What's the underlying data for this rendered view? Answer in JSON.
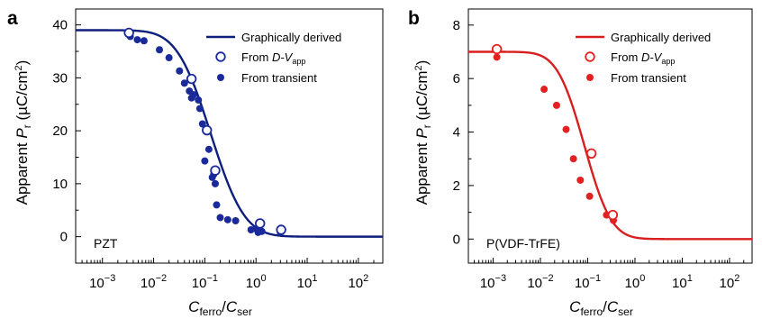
{
  "chart_data": [
    {
      "panel": "a",
      "type": "scatter",
      "color": "#1a2a9a",
      "curve_color": "#0d1f7a",
      "annotation": "PZT",
      "xscale": "log",
      "xlim": [
        0.0003,
        300
      ],
      "ylim": [
        -5,
        43
      ],
      "xticks": [
        0.001,
        0.01,
        0.1,
        1,
        10,
        100
      ],
      "xtick_mantissa": "10",
      "xtick_exponents": [
        "−3",
        "−2",
        "−1",
        "0",
        "1",
        "2"
      ],
      "yticks": [
        0,
        10,
        20,
        30,
        40
      ],
      "ytick_labels": [
        "0",
        "10",
        "20",
        "30",
        "40"
      ],
      "xlabel": {
        "C": "C",
        "ferro": "ferro",
        "slash": "/",
        "C2": "C",
        "ser": "ser"
      },
      "ylabel": {
        "prefix": "Apparent ",
        "P": "P",
        "r": "r",
        "units": " (µC/cm",
        "sup": "2",
        "close": ")"
      },
      "legend": {
        "curve": "Graphically derived",
        "open_from": "From ",
        "open_dv": "D-V",
        "open_sub": "app",
        "filled": "From transient"
      },
      "model": {
        "p_max": 39.0,
        "x0": 0.13,
        "width": 0.52
      },
      "series": [
        {
          "name": "Graphically derived",
          "kind": "curve"
        },
        {
          "name": "From D-Vapp",
          "kind": "open",
          "x": [
            0.0033,
            0.055,
            0.11,
            0.16,
            1.2,
            3.1
          ],
          "y": [
            38.5,
            29.8,
            20.1,
            12.5,
            2.5,
            1.3
          ]
        },
        {
          "name": "From transient",
          "kind": "filled",
          "x": [
            0.0035,
            0.0048,
            0.0065,
            0.013,
            0.02,
            0.032,
            0.04,
            0.05,
            0.055,
            0.06,
            0.075,
            0.08,
            0.09,
            0.1,
            0.12,
            0.14,
            0.15,
            0.16,
            0.17,
            0.2,
            0.28,
            0.4,
            0.8,
            1.0,
            1.1,
            1.3,
            3.0
          ],
          "y": [
            37.8,
            37.2,
            37.0,
            35.3,
            33.8,
            31.3,
            29.0,
            27.5,
            26.2,
            26.8,
            25.8,
            24.2,
            21.3,
            14.3,
            16.5,
            11.2,
            11.8,
            10.0,
            6.0,
            3.6,
            3.2,
            3.0,
            1.3,
            1.5,
            0.8,
            1.0,
            0.8
          ]
        }
      ]
    },
    {
      "panel": "b",
      "type": "scatter",
      "color": "#e52020",
      "curve_color": "#d81e1e",
      "annotation": "P(VDF-TrFE)",
      "xscale": "log",
      "xlim": [
        0.0003,
        300
      ],
      "ylim": [
        -0.9,
        8.6
      ],
      "xticks": [
        0.001,
        0.01,
        0.1,
        1,
        10,
        100
      ],
      "xtick_mantissa": "10",
      "xtick_exponents": [
        "−3",
        "−2",
        "−1",
        "0",
        "1",
        "2"
      ],
      "yticks": [
        0,
        2,
        4,
        6,
        8
      ],
      "ytick_labels": [
        "0",
        "2",
        "4",
        "6",
        "8"
      ],
      "xlabel": {
        "C": "C",
        "ferro": "ferro",
        "slash": "/",
        "C2": "C",
        "ser": "ser"
      },
      "ylabel": {
        "prefix": "Apparent ",
        "P": "P",
        "r": "r",
        "units": " (µC/cm",
        "sup": "2",
        "close": ")"
      },
      "legend": {
        "curve": "Graphically derived",
        "open_from": "From ",
        "open_dv": "D-V",
        "open_sub": "app",
        "filled": "From transient"
      },
      "model": {
        "p_max": 7.0,
        "x0": 0.085,
        "width": 0.45
      },
      "series": [
        {
          "name": "Graphically derived",
          "kind": "curve"
        },
        {
          "name": "From D-Vapp",
          "kind": "open",
          "x": [
            0.0012,
            0.12,
            0.34
          ],
          "y": [
            7.1,
            3.2,
            0.9
          ]
        },
        {
          "name": "From transient",
          "kind": "filled",
          "x": [
            0.0012,
            0.012,
            0.022,
            0.035,
            0.05,
            0.07,
            0.11,
            0.25,
            0.35
          ],
          "y": [
            6.8,
            5.6,
            5.0,
            4.1,
            3.0,
            2.2,
            1.6,
            0.9,
            0.7
          ]
        }
      ]
    }
  ]
}
